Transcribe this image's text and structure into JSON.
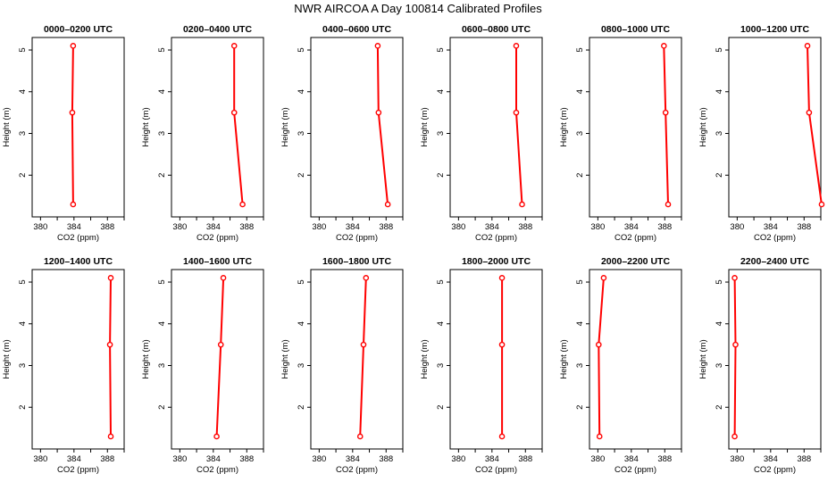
{
  "title": "NWR AIRCOA A  Day 100814  Calibrated Profiles",
  "chart_data": [
    {
      "type": "line",
      "title": "0000–0200 UTC",
      "xlabel": "CO2 (ppm)",
      "ylabel": "Height (m)",
      "xlim": [
        379,
        390
      ],
      "ylim": [
        1.0,
        5.3
      ],
      "xticks": [
        380,
        384,
        388
      ],
      "yticks": [
        2,
        3,
        4,
        5
      ],
      "series": [
        {
          "color": "#ff0000",
          "x": [
            383.9,
            383.8,
            383.9
          ],
          "y": [
            5.1,
            3.5,
            1.3
          ]
        }
      ]
    },
    {
      "type": "line",
      "title": "0200–0400 UTC",
      "xlabel": "CO2 (ppm)",
      "ylabel": "Height (m)",
      "xlim": [
        379,
        390
      ],
      "ylim": [
        1.0,
        5.3
      ],
      "xticks": [
        380,
        384,
        388
      ],
      "yticks": [
        2,
        3,
        4,
        5
      ],
      "series": [
        {
          "color": "#ff0000",
          "x": [
            386.5,
            386.5,
            387.5
          ],
          "y": [
            5.1,
            3.5,
            1.3
          ]
        }
      ]
    },
    {
      "type": "line",
      "title": "0400–0600 UTC",
      "xlabel": "CO2 (ppm)",
      "ylabel": "Height (m)",
      "xlim": [
        379,
        390
      ],
      "ylim": [
        1.0,
        5.3
      ],
      "xticks": [
        380,
        384,
        388
      ],
      "yticks": [
        2,
        3,
        4,
        5
      ],
      "series": [
        {
          "color": "#ff0000",
          "x": [
            387.0,
            387.1,
            388.2
          ],
          "y": [
            5.1,
            3.5,
            1.3
          ]
        }
      ]
    },
    {
      "type": "line",
      "title": "0600–0800 UTC",
      "xlabel": "CO2 (ppm)",
      "ylabel": "Height (m)",
      "xlim": [
        379,
        390
      ],
      "ylim": [
        1.0,
        5.3
      ],
      "xticks": [
        380,
        384,
        388
      ],
      "yticks": [
        2,
        3,
        4,
        5
      ],
      "series": [
        {
          "color": "#ff0000",
          "x": [
            386.9,
            386.9,
            387.6
          ],
          "y": [
            5.1,
            3.5,
            1.3
          ]
        }
      ]
    },
    {
      "type": "line",
      "title": "0800–1000 UTC",
      "xlabel": "CO2 (ppm)",
      "ylabel": "Height (m)",
      "xlim": [
        379,
        390
      ],
      "ylim": [
        1.0,
        5.3
      ],
      "xticks": [
        380,
        384,
        388
      ],
      "yticks": [
        2,
        3,
        4,
        5
      ],
      "series": [
        {
          "color": "#ff0000",
          "x": [
            387.9,
            388.1,
            388.4
          ],
          "y": [
            5.1,
            3.5,
            1.3
          ]
        }
      ]
    },
    {
      "type": "line",
      "title": "1000–1200 UTC",
      "xlabel": "CO2 (ppm)",
      "ylabel": "Height (m)",
      "xlim": [
        379,
        390
      ],
      "ylim": [
        1.0,
        5.3
      ],
      "xticks": [
        380,
        384,
        388
      ],
      "yticks": [
        2,
        3,
        4,
        5
      ],
      "series": [
        {
          "color": "#ff0000",
          "x": [
            388.4,
            388.6,
            390.1
          ],
          "y": [
            5.1,
            3.5,
            1.3
          ]
        }
      ]
    },
    {
      "type": "line",
      "title": "1200–1400 UTC",
      "xlabel": "CO2 (ppm)",
      "ylabel": "Height (m)",
      "xlim": [
        379,
        390
      ],
      "ylim": [
        1.0,
        5.3
      ],
      "xticks": [
        380,
        384,
        388
      ],
      "yticks": [
        2,
        3,
        4,
        5
      ],
      "series": [
        {
          "color": "#ff0000",
          "x": [
            388.4,
            388.3,
            388.4
          ],
          "y": [
            5.1,
            3.5,
            1.3
          ]
        }
      ]
    },
    {
      "type": "line",
      "title": "1400–1600 UTC",
      "xlabel": "CO2 (ppm)",
      "ylabel": "Height (m)",
      "xlim": [
        379,
        390
      ],
      "ylim": [
        1.0,
        5.3
      ],
      "xticks": [
        380,
        384,
        388
      ],
      "yticks": [
        2,
        3,
        4,
        5
      ],
      "series": [
        {
          "color": "#ff0000",
          "x": [
            385.2,
            384.9,
            384.4
          ],
          "y": [
            5.1,
            3.5,
            1.3
          ]
        }
      ]
    },
    {
      "type": "line",
      "title": "1600–1800 UTC",
      "xlabel": "CO2 (ppm)",
      "ylabel": "Height (m)",
      "xlim": [
        379,
        390
      ],
      "ylim": [
        1.0,
        5.3
      ],
      "xticks": [
        380,
        384,
        388
      ],
      "yticks": [
        2,
        3,
        4,
        5
      ],
      "series": [
        {
          "color": "#ff0000",
          "x": [
            385.6,
            385.3,
            384.9
          ],
          "y": [
            5.1,
            3.5,
            1.3
          ]
        }
      ]
    },
    {
      "type": "line",
      "title": "1800–2000 UTC",
      "xlabel": "CO2 (ppm)",
      "ylabel": "Height (m)",
      "xlim": [
        379,
        390
      ],
      "ylim": [
        1.0,
        5.3
      ],
      "xticks": [
        380,
        384,
        388
      ],
      "yticks": [
        2,
        3,
        4,
        5
      ],
      "series": [
        {
          "color": "#ff0000",
          "x": [
            385.2,
            385.2,
            385.2
          ],
          "y": [
            5.1,
            3.5,
            1.3
          ]
        }
      ]
    },
    {
      "type": "line",
      "title": "2000–2200 UTC",
      "xlabel": "CO2 (ppm)",
      "ylabel": "Height (m)",
      "xlim": [
        379,
        390
      ],
      "ylim": [
        1.0,
        5.3
      ],
      "xticks": [
        380,
        384,
        388
      ],
      "yticks": [
        2,
        3,
        4,
        5
      ],
      "series": [
        {
          "color": "#ff0000",
          "x": [
            380.7,
            380.1,
            380.2
          ],
          "y": [
            5.1,
            3.5,
            1.3
          ]
        }
      ]
    },
    {
      "type": "line",
      "title": "2200–2400 UTC",
      "xlabel": "CO2 (ppm)",
      "ylabel": "Height (m)",
      "xlim": [
        379,
        390
      ],
      "ylim": [
        1.0,
        5.3
      ],
      "xticks": [
        380,
        384,
        388
      ],
      "yticks": [
        2,
        3,
        4,
        5
      ],
      "series": [
        {
          "color": "#ff0000",
          "x": [
            379.7,
            379.8,
            379.7
          ],
          "y": [
            5.1,
            3.5,
            1.3
          ]
        }
      ]
    }
  ]
}
